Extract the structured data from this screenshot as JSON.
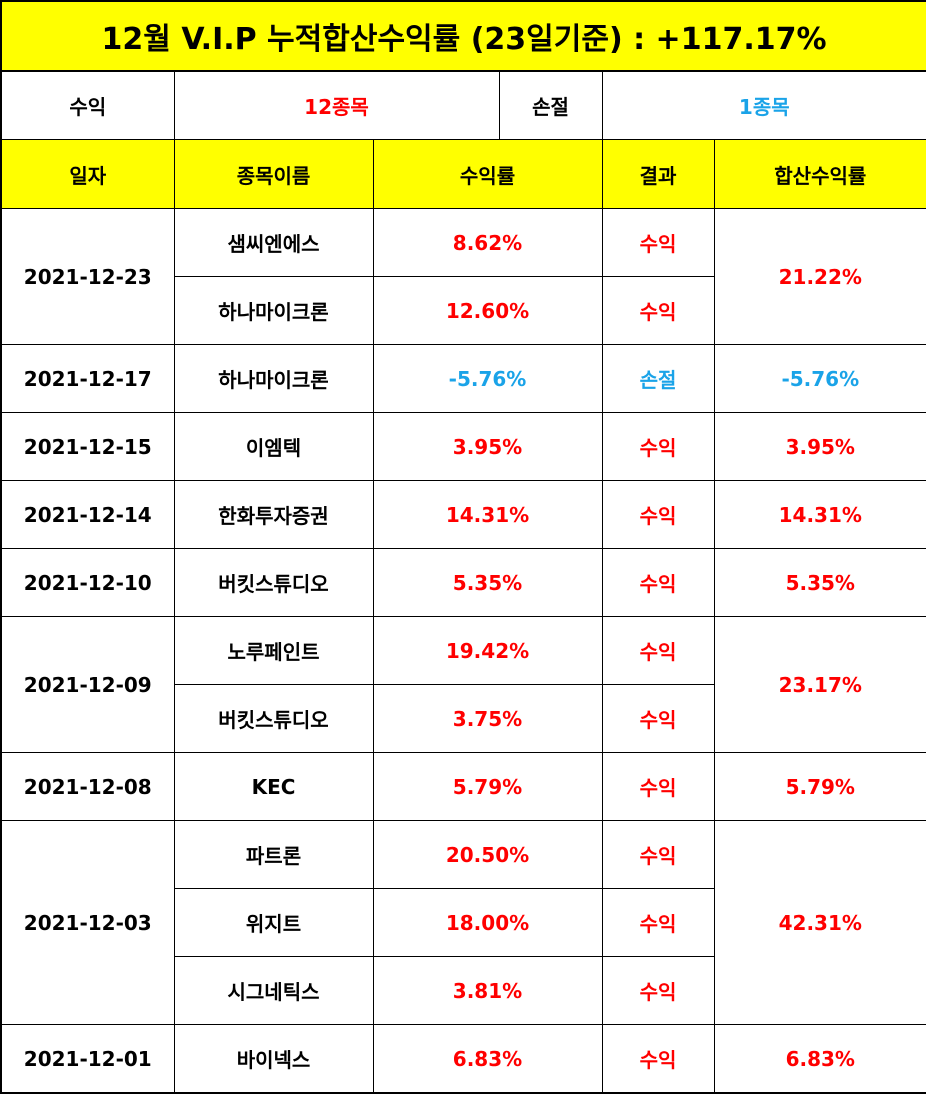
{
  "title": "12월 V.I.P 누적합산수익률 (23일기준) : +117.17%",
  "summary": {
    "profit_label": "수익",
    "profit_value": "12종목",
    "loss_label": "손절",
    "loss_value": "1종목"
  },
  "headers": {
    "date": "일자",
    "stock": "종목이름",
    "return": "수익률",
    "result": "결과",
    "combined": "합산수익률"
  },
  "groups": [
    {
      "date": "2021-12-23",
      "combined": "21.22%",
      "status": "profit",
      "rows": [
        {
          "stock": "샘씨엔에스",
          "return": "8.62%",
          "result": "수익",
          "status": "profit"
        },
        {
          "stock": "하나마이크론",
          "return": "12.60%",
          "result": "수익",
          "status": "profit"
        }
      ]
    },
    {
      "date": "2021-12-17",
      "combined": "-5.76%",
      "status": "loss",
      "rows": [
        {
          "stock": "하나마이크론",
          "return": "-5.76%",
          "result": "손절",
          "status": "loss"
        }
      ]
    },
    {
      "date": "2021-12-15",
      "combined": "3.95%",
      "status": "profit",
      "rows": [
        {
          "stock": "이엠텍",
          "return": "3.95%",
          "result": "수익",
          "status": "profit"
        }
      ]
    },
    {
      "date": "2021-12-14",
      "combined": "14.31%",
      "status": "profit",
      "rows": [
        {
          "stock": "한화투자증권",
          "return": "14.31%",
          "result": "수익",
          "status": "profit"
        }
      ]
    },
    {
      "date": "2021-12-10",
      "combined": "5.35%",
      "status": "profit",
      "rows": [
        {
          "stock": "버킷스튜디오",
          "return": "5.35%",
          "result": "수익",
          "status": "profit"
        }
      ]
    },
    {
      "date": "2021-12-09",
      "combined": "23.17%",
      "status": "profit",
      "rows": [
        {
          "stock": "노루페인트",
          "return": "19.42%",
          "result": "수익",
          "status": "profit"
        },
        {
          "stock": "버킷스튜디오",
          "return": "3.75%",
          "result": "수익",
          "status": "profit"
        }
      ]
    },
    {
      "date": "2021-12-08",
      "combined": "5.79%",
      "status": "profit",
      "rows": [
        {
          "stock": "KEC",
          "return": "5.79%",
          "result": "수익",
          "status": "profit"
        }
      ]
    },
    {
      "date": "2021-12-03",
      "combined": "42.31%",
      "status": "profit",
      "rows": [
        {
          "stock": "파트론",
          "return": "20.50%",
          "result": "수익",
          "status": "profit"
        },
        {
          "stock": "위지트",
          "return": "18.00%",
          "result": "수익",
          "status": "profit"
        },
        {
          "stock": "시그네틱스",
          "return": "3.81%",
          "result": "수익",
          "status": "profit"
        }
      ]
    },
    {
      "date": "2021-12-01",
      "combined": "6.83%",
      "status": "profit",
      "rows": [
        {
          "stock": "바이넥스",
          "return": "6.83%",
          "result": "수익",
          "status": "profit"
        }
      ]
    }
  ],
  "colors": {
    "header_bg": "#ffff00",
    "profit": "#ff0000",
    "loss": "#1aa3e8",
    "border": "#000000"
  }
}
